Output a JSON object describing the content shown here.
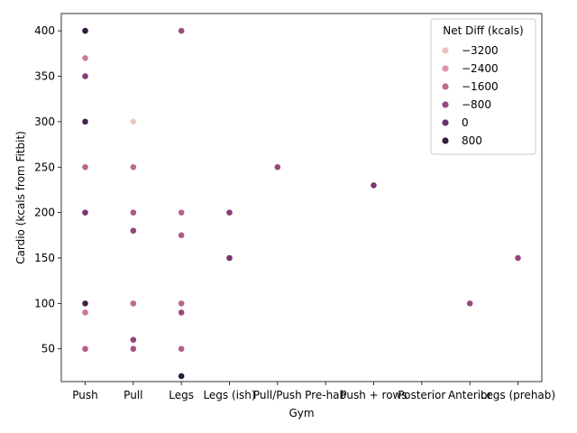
{
  "chart_data": {
    "type": "scatter",
    "xlabel": "Gym",
    "ylabel": "Cardio (kcals from Fitbit)",
    "categories": [
      "Push",
      "Pull",
      "Legs",
      "Legs (ish)",
      "Pull/Push",
      "Pre-hab",
      "Push + rows",
      "Posterior",
      "Anterior",
      "Legs (prehab)"
    ],
    "ylim": [
      14,
      419
    ],
    "yticks": [
      50,
      100,
      150,
      200,
      250,
      300,
      350,
      400
    ],
    "grid": false,
    "legend": {
      "title": "Net Diff (kcals)",
      "placement": "top-right",
      "entries": [
        {
          "label": "−3200",
          "value": -3200
        },
        {
          "label": "−2400",
          "value": -2400
        },
        {
          "label": "−1600",
          "value": -1600
        },
        {
          "label": "−800",
          "value": -800
        },
        {
          "label": "0",
          "value": 0
        },
        {
          "label": "800",
          "value": 800
        }
      ]
    },
    "hue_scale": {
      "min": -3600,
      "max": 1000
    },
    "points": [
      {
        "x": "Push",
        "y": 400,
        "hue": 800
      },
      {
        "x": "Push",
        "y": 370,
        "hue": -1900
      },
      {
        "x": "Push",
        "y": 350,
        "hue": -400
      },
      {
        "x": "Push",
        "y": 300,
        "hue": 500
      },
      {
        "x": "Push",
        "y": 250,
        "hue": -1500
      },
      {
        "x": "Push",
        "y": 200,
        "hue": -300
      },
      {
        "x": "Push",
        "y": 100,
        "hue": 600
      },
      {
        "x": "Push",
        "y": 90,
        "hue": -1800
      },
      {
        "x": "Push",
        "y": 50,
        "hue": -1300
      },
      {
        "x": "Pull",
        "y": 300,
        "hue": -3300
      },
      {
        "x": "Pull",
        "y": 250,
        "hue": -1600
      },
      {
        "x": "Pull",
        "y": 200,
        "hue": -1200
      },
      {
        "x": "Pull",
        "y": 180,
        "hue": -700
      },
      {
        "x": "Pull",
        "y": 100,
        "hue": -1600
      },
      {
        "x": "Pull",
        "y": 60,
        "hue": -700
      },
      {
        "x": "Pull",
        "y": 50,
        "hue": -1100
      },
      {
        "x": "Legs",
        "y": 400,
        "hue": -900
      },
      {
        "x": "Legs",
        "y": 200,
        "hue": -1400
      },
      {
        "x": "Legs",
        "y": 175,
        "hue": -1200
      },
      {
        "x": "Legs",
        "y": 100,
        "hue": -1500
      },
      {
        "x": "Legs",
        "y": 90,
        "hue": -800
      },
      {
        "x": "Legs",
        "y": 50,
        "hue": -1400
      },
      {
        "x": "Legs",
        "y": 20,
        "hue": 900
      },
      {
        "x": "Legs (ish)",
        "y": 200,
        "hue": -500
      },
      {
        "x": "Legs (ish)",
        "y": 150,
        "hue": -200
      },
      {
        "x": "Pull/Push",
        "y": 250,
        "hue": -800
      },
      {
        "x": "Push + rows",
        "y": 230,
        "hue": -300
      },
      {
        "x": "Anterior",
        "y": 100,
        "hue": -800
      },
      {
        "x": "Legs (prehab)",
        "y": 150,
        "hue": -700
      }
    ]
  }
}
